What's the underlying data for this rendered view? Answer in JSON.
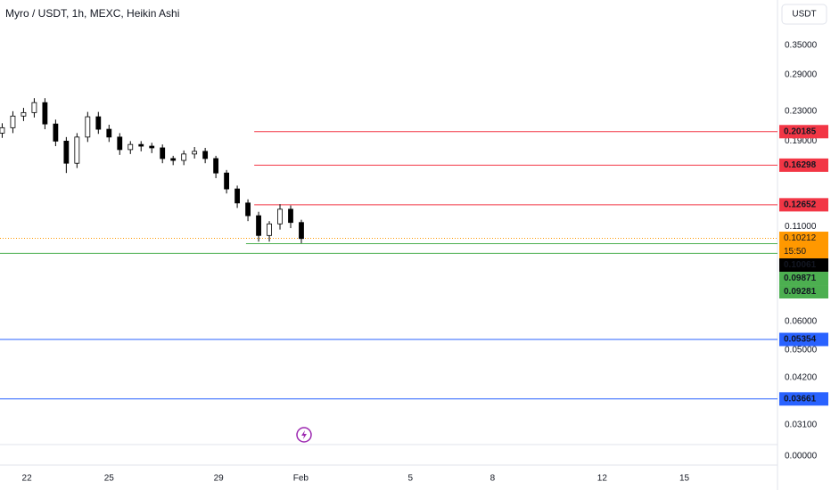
{
  "chart_data": {
    "type": "candlestick",
    "title": "Myro / USDT, 1h, MEXC, Heikin Ashi",
    "currency": "USDT",
    "log_scale": true,
    "ylim": [
      0.024,
      0.468
    ],
    "yticks": [
      {
        "value": 0.35,
        "label": "0.35000"
      },
      {
        "value": 0.29,
        "label": "0.29000"
      },
      {
        "value": 0.23,
        "label": "0.23000"
      },
      {
        "value": 0.19,
        "label": "0.19000"
      },
      {
        "value": 0.11,
        "label": "0.11000"
      },
      {
        "value": 0.06,
        "label": "0.06000"
      },
      {
        "value": 0.05,
        "label": "0.05000"
      },
      {
        "value": 0.042,
        "label": "0.04200"
      },
      {
        "value": 0.031,
        "label": "0.03100"
      },
      {
        "value": 0,
        "label": "0.00000"
      }
    ],
    "xlim": [
      21.02,
      49.4
    ],
    "xticks": [
      {
        "value": 22,
        "label": "22"
      },
      {
        "value": 25,
        "label": "25"
      },
      {
        "value": 29,
        "label": "29"
      },
      {
        "value": 32,
        "label": "Feb"
      },
      {
        "value": 36,
        "label": "5"
      },
      {
        "value": 39,
        "label": "8"
      },
      {
        "value": 43,
        "label": "12"
      },
      {
        "value": 46,
        "label": "15"
      }
    ],
    "x": [
      21.1,
      21.49,
      21.88,
      22.27,
      22.66,
      23.05,
      23.44,
      23.83,
      24.22,
      24.61,
      25.0,
      25.39,
      25.78,
      26.17,
      26.56,
      26.95,
      27.34,
      27.73,
      28.12,
      28.51,
      28.9,
      29.29,
      29.68,
      30.07,
      30.46,
      30.85,
      31.24,
      31.63,
      32.02
    ],
    "open": [
      0.2,
      0.207,
      0.223,
      0.228,
      0.243,
      0.212,
      0.19,
      0.165,
      0.195,
      0.222,
      0.205,
      0.195,
      0.18,
      0.186,
      0.184,
      0.182,
      0.17,
      0.168,
      0.175,
      0.178,
      0.17,
      0.155,
      0.14,
      0.128,
      0.118,
      0.104,
      0.112,
      0.123,
      0.113
    ],
    "high": [
      0.213,
      0.23,
      0.235,
      0.25,
      0.25,
      0.218,
      0.195,
      0.2,
      0.229,
      0.229,
      0.211,
      0.2,
      0.19,
      0.19,
      0.188,
      0.186,
      0.173,
      0.179,
      0.183,
      0.182,
      0.173,
      0.158,
      0.143,
      0.131,
      0.121,
      0.114,
      0.127,
      0.126,
      0.115
    ],
    "low": [
      0.194,
      0.2,
      0.216,
      0.221,
      0.205,
      0.184,
      0.155,
      0.16,
      0.189,
      0.199,
      0.189,
      0.174,
      0.175,
      0.178,
      0.176,
      0.165,
      0.163,
      0.163,
      0.17,
      0.165,
      0.15,
      0.136,
      0.124,
      0.114,
      0.1,
      0.1,
      0.108,
      0.109,
      0.099
    ],
    "close": [
      0.207,
      0.223,
      0.228,
      0.243,
      0.212,
      0.19,
      0.165,
      0.195,
      0.222,
      0.205,
      0.195,
      0.18,
      0.186,
      0.184,
      0.182,
      0.17,
      0.168,
      0.175,
      0.178,
      0.17,
      0.155,
      0.14,
      0.128,
      0.118,
      0.104,
      0.112,
      0.123,
      0.113,
      0.102
    ],
    "current_price": {
      "value": 0.10212,
      "countdown": "15:50",
      "color": "#ff9800"
    },
    "levels": [
      {
        "value": 0.20185,
        "color": "#f23645",
        "x_start": 30.3
      },
      {
        "value": 0.16298,
        "color": "#f23645",
        "x_start": 30.3
      },
      {
        "value": 0.12652,
        "color": "#f23645",
        "x_start": 30.3
      },
      {
        "value": 0.10061,
        "color": "#000000",
        "line": false
      },
      {
        "value": 0.09871,
        "color": "#4caf50",
        "x_start": 30.0
      },
      {
        "value": 0.09281,
        "color": "#4caf50"
      },
      {
        "value": 0.05354,
        "color": "#2962ff"
      },
      {
        "value": 0.03661,
        "color": "#2962ff"
      }
    ]
  }
}
